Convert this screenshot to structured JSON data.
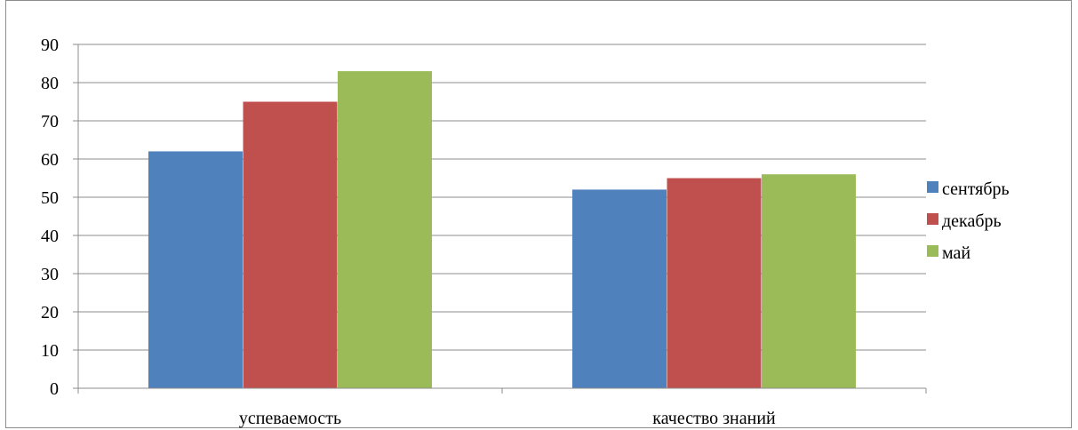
{
  "chart_data": {
    "type": "bar",
    "categories": [
      "успеваемость",
      "качество знаний"
    ],
    "series": [
      {
        "name": "сентябрь",
        "color": "#4F81BD",
        "values": [
          62,
          52
        ]
      },
      {
        "name": "декабрь",
        "color": "#C0504D",
        "values": [
          75,
          55
        ]
      },
      {
        "name": "май",
        "color": "#9BBB59",
        "values": [
          83,
          56
        ]
      }
    ],
    "ylim": [
      0,
      90
    ],
    "yticks": [
      "0",
      "10",
      "20",
      "30",
      "40",
      "50",
      "60",
      "70",
      "80",
      "90"
    ],
    "grid": true,
    "legend": "right"
  }
}
